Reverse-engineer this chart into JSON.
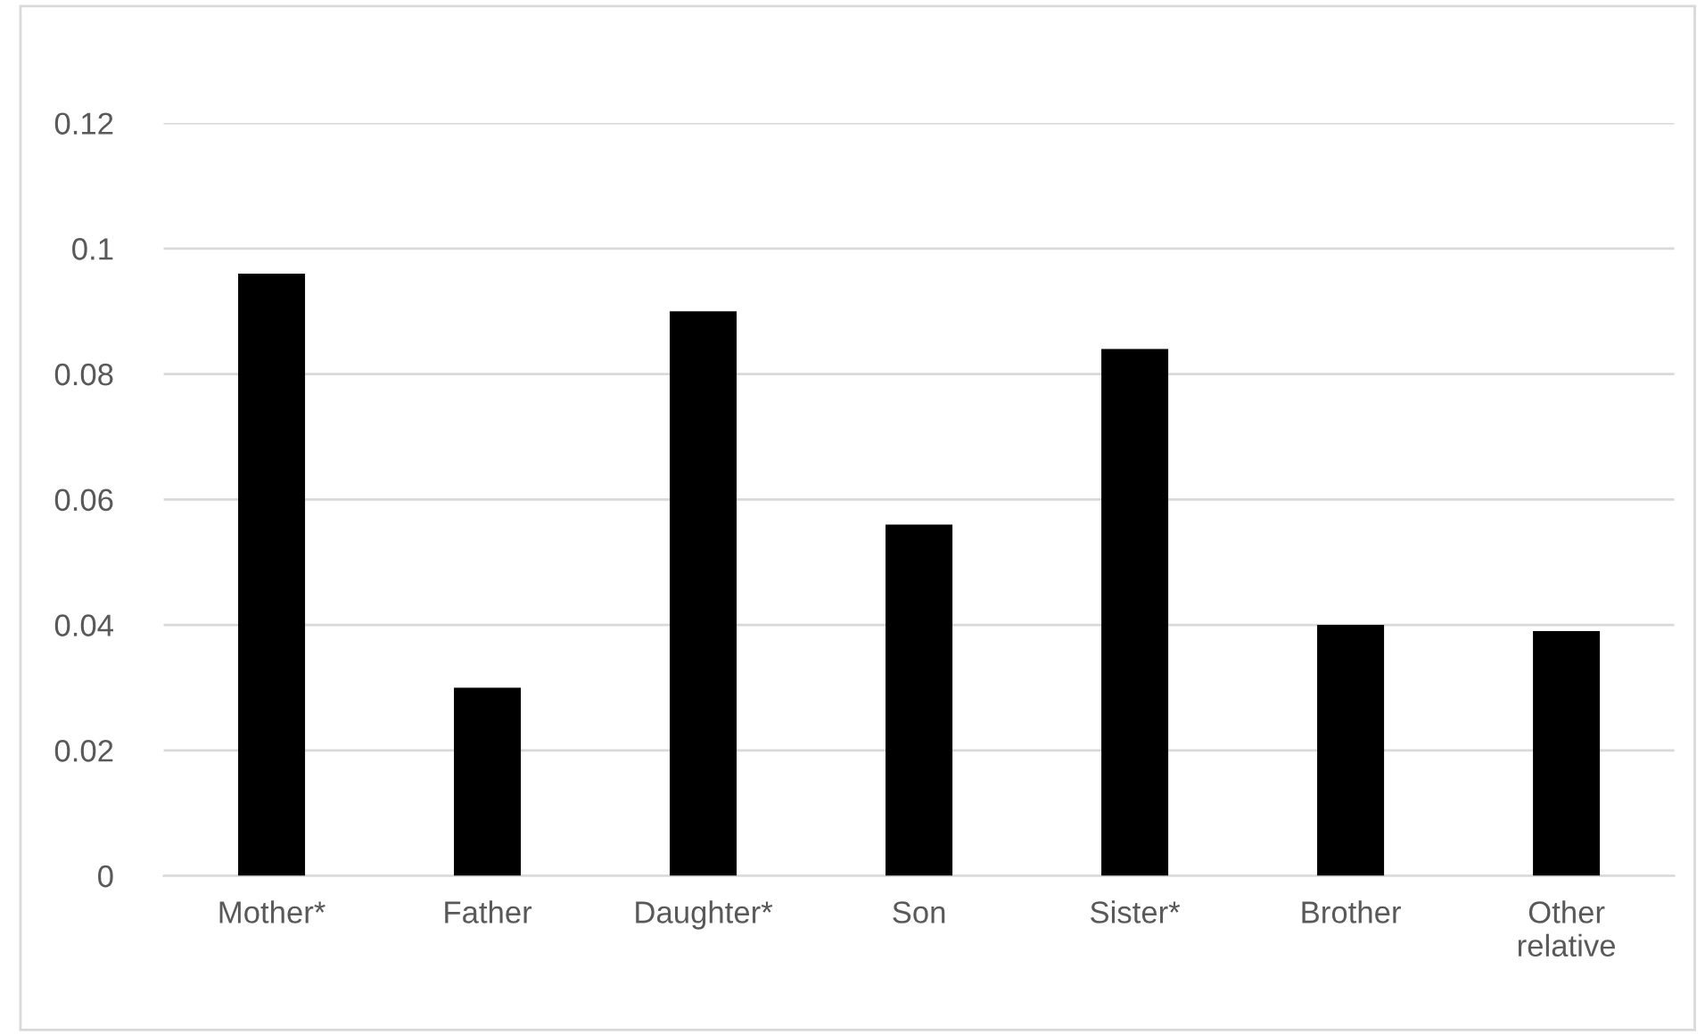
{
  "chart_data": {
    "type": "bar",
    "categories": [
      "Mother*",
      "Father",
      "Daughter*",
      "Son",
      "Sister*",
      "Brother",
      "Other relative"
    ],
    "values": [
      0.096,
      0.03,
      0.09,
      0.056,
      0.084,
      0.04,
      0.039
    ],
    "color": "#000000",
    "ylim": [
      0,
      0.12
    ],
    "yticks": [
      0,
      {
        "value": 0.02,
        "label": "0.02"
      },
      {
        "value": 0.04,
        "label": "0.04"
      },
      {
        "value": 0.06,
        "label": "0.06"
      },
      {
        "value": 0.08,
        "label": "0.08"
      },
      {
        "value": 0.1,
        "label": "0.1"
      },
      {
        "value": 0.12,
        "label": "0.12"
      }
    ],
    "grid": "y",
    "legend": false
  }
}
